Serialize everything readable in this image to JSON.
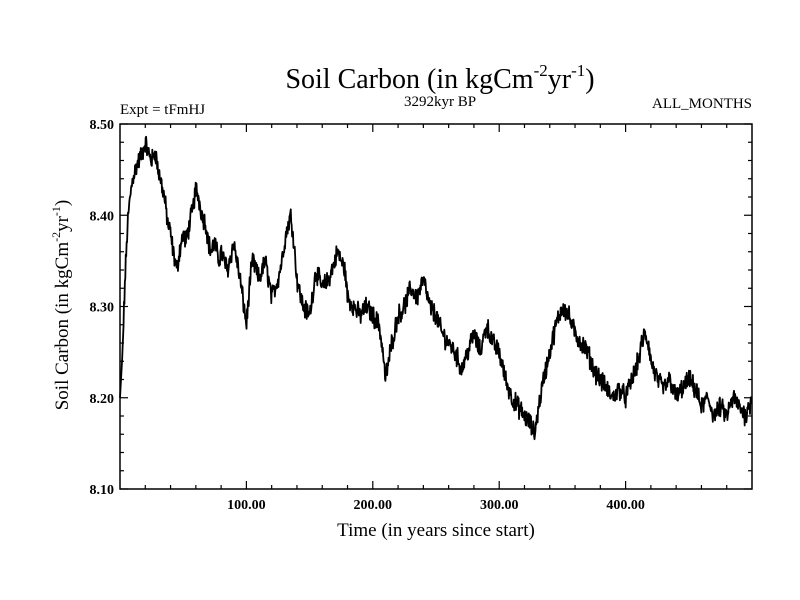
{
  "chart_data": {
    "type": "line",
    "title": {
      "base": "Soil Carbon (in kgCm",
      "sup1": "-2",
      "mid": "yr",
      "sup2": "-1",
      "end": ")"
    },
    "subtitle_left": "Expt = tFmHJ",
    "subtitle_center": "3292kyr BP",
    "subtitle_right": "ALL_MONTHS",
    "xlabel": "Time (in years since start)",
    "ylabel": {
      "base": "Soil Carbon (in kgCm",
      "sup1": "-2",
      "mid": "yr",
      "sup2": "-1",
      "end": ")"
    },
    "xlim": [
      0,
      500
    ],
    "ylim": [
      8.1,
      8.5
    ],
    "x_ticks": [
      100,
      200,
      300,
      400
    ],
    "x_tick_labels": [
      "100.00",
      "200.00",
      "300.00",
      "400.00"
    ],
    "y_ticks": [
      8.1,
      8.2,
      8.3,
      8.4,
      8.5
    ],
    "y_tick_labels": [
      "8.10",
      "8.20",
      "8.30",
      "8.40",
      "8.50"
    ],
    "series": [
      {
        "name": "Soil Carbon",
        "color": "#000000",
        "x": [
          0,
          2,
          4,
          6,
          8,
          10,
          12,
          15,
          18,
          20,
          22,
          25,
          28,
          30,
          32,
          35,
          38,
          40,
          42,
          45,
          47,
          50,
          52,
          55,
          58,
          60,
          62,
          65,
          68,
          70,
          72,
          75,
          78,
          80,
          85,
          90,
          95,
          100,
          103,
          105,
          110,
          115,
          120,
          125,
          128,
          130,
          133,
          135,
          137,
          140,
          143,
          145,
          150,
          155,
          160,
          165,
          170,
          172,
          175,
          178,
          180,
          185,
          190,
          195,
          200,
          205,
          208,
          210,
          215,
          220,
          225,
          230,
          235,
          240,
          245,
          250,
          255,
          260,
          265,
          268,
          270,
          275,
          280,
          285,
          290,
          295,
          300,
          305,
          310,
          315,
          320,
          325,
          328,
          330,
          335,
          340,
          345,
          350,
          355,
          360,
          365,
          370,
          375,
          380,
          385,
          390,
          395,
          400,
          405,
          410,
          413,
          415,
          418,
          420,
          425,
          430,
          435,
          440,
          445,
          450,
          455,
          460,
          465,
          470,
          475,
          480,
          485,
          490,
          495,
          500
        ],
        "values": [
          8.2,
          8.25,
          8.33,
          8.39,
          8.42,
          8.44,
          8.45,
          8.46,
          8.47,
          8.48,
          8.47,
          8.46,
          8.47,
          8.45,
          8.44,
          8.42,
          8.39,
          8.38,
          8.36,
          8.34,
          8.36,
          8.38,
          8.37,
          8.39,
          8.41,
          8.43,
          8.42,
          8.4,
          8.39,
          8.37,
          8.36,
          8.37,
          8.35,
          8.36,
          8.34,
          8.37,
          8.33,
          8.28,
          8.33,
          8.35,
          8.33,
          8.35,
          8.31,
          8.33,
          8.35,
          8.37,
          8.39,
          8.4,
          8.38,
          8.33,
          8.31,
          8.3,
          8.29,
          8.34,
          8.32,
          8.33,
          8.35,
          8.36,
          8.35,
          8.34,
          8.31,
          8.3,
          8.29,
          8.3,
          8.29,
          8.28,
          8.25,
          8.22,
          8.26,
          8.29,
          8.3,
          8.32,
          8.31,
          8.33,
          8.3,
          8.29,
          8.27,
          8.26,
          8.25,
          8.24,
          8.23,
          8.25,
          8.27,
          8.25,
          8.28,
          8.26,
          8.25,
          8.22,
          8.2,
          8.19,
          8.18,
          8.17,
          8.16,
          8.18,
          8.22,
          8.25,
          8.28,
          8.3,
          8.29,
          8.27,
          8.26,
          8.25,
          8.23,
          8.22,
          8.21,
          8.2,
          8.21,
          8.2,
          8.22,
          8.24,
          8.26,
          8.27,
          8.26,
          8.24,
          8.22,
          8.21,
          8.22,
          8.2,
          8.21,
          8.22,
          8.21,
          8.19,
          8.2,
          8.18,
          8.19,
          8.18,
          8.2,
          8.19,
          8.18,
          8.2
        ]
      }
    ]
  }
}
